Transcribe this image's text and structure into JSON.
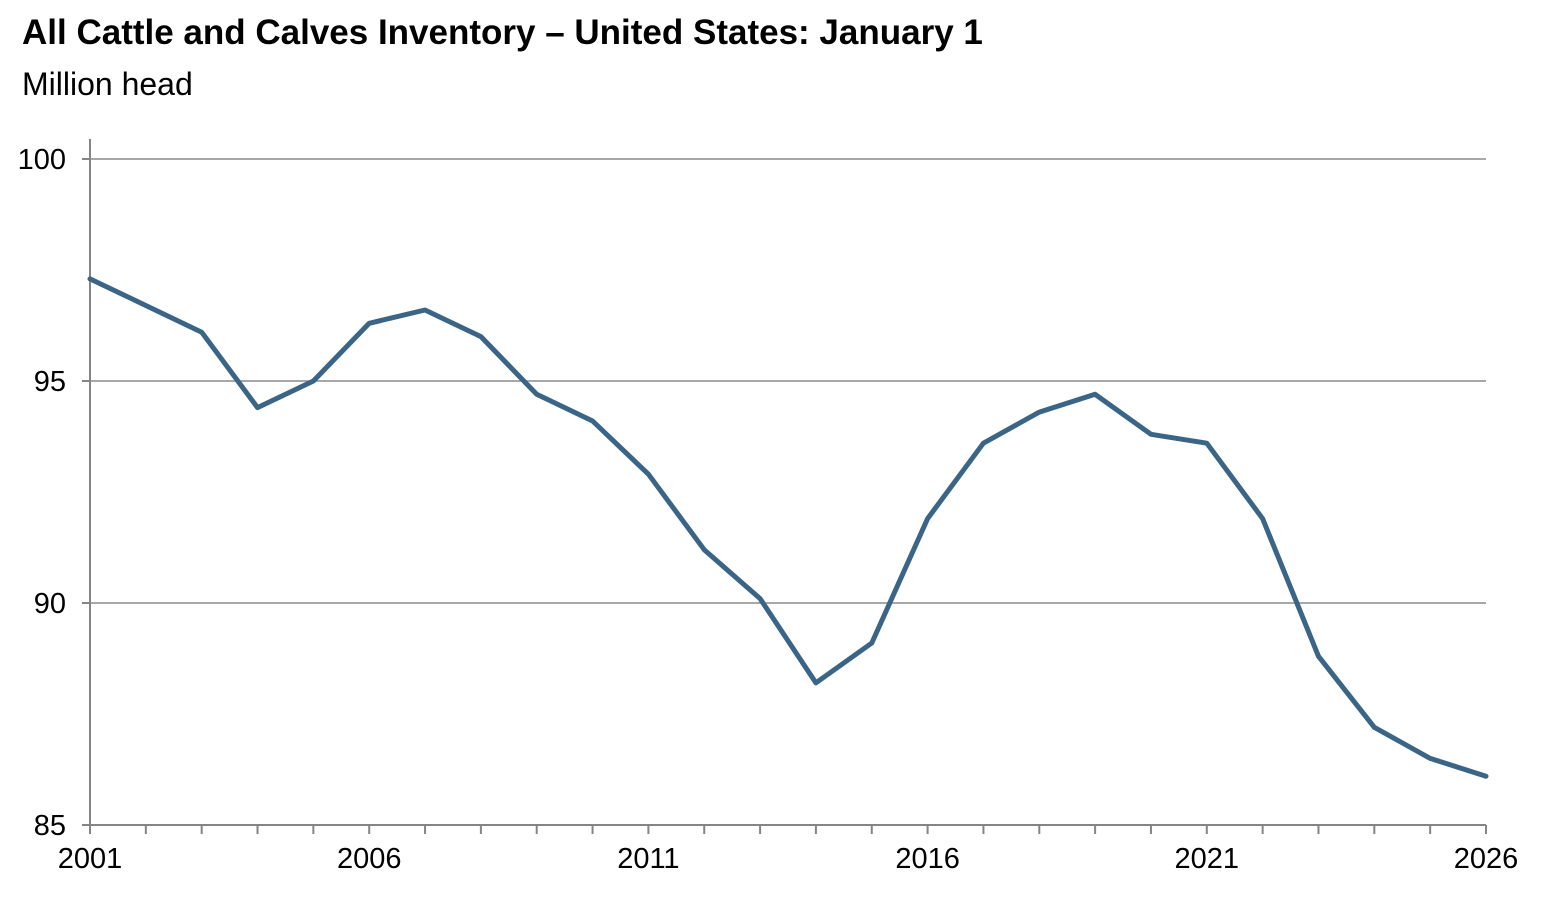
{
  "header": {
    "title": "All Cattle and Calves Inventory – United States: January 1",
    "subtitle": "Million head"
  },
  "chart_data": {
    "type": "line",
    "title": "All Cattle and Calves Inventory – United States: January 1",
    "units_label": "Million head",
    "series_name": "All cattle and calves inventory",
    "x": [
      2001,
      2002,
      2003,
      2004,
      2005,
      2006,
      2007,
      2008,
      2009,
      2010,
      2011,
      2012,
      2013,
      2014,
      2015,
      2016,
      2017,
      2018,
      2019,
      2020,
      2021,
      2022,
      2023,
      2024,
      2025,
      2026
    ],
    "values": [
      97.3,
      96.7,
      96.1,
      94.4,
      95.0,
      96.3,
      96.6,
      96.0,
      94.7,
      94.1,
      92.9,
      91.2,
      90.1,
      88.2,
      89.1,
      91.9,
      93.6,
      94.3,
      94.7,
      93.8,
      93.6,
      91.9,
      88.8,
      87.2,
      86.5,
      86.1
    ],
    "ylim": [
      85,
      100
    ],
    "yticks": [
      85,
      90,
      95,
      100
    ],
    "xtick_labels": [
      2001,
      2006,
      2011,
      2016,
      2021,
      2026
    ],
    "grid": "horizontal",
    "legend": "none",
    "line_color": "#3A6587",
    "grid_color": "#8C8C8C",
    "axis_color": "#858585",
    "text_color": "#000000"
  }
}
